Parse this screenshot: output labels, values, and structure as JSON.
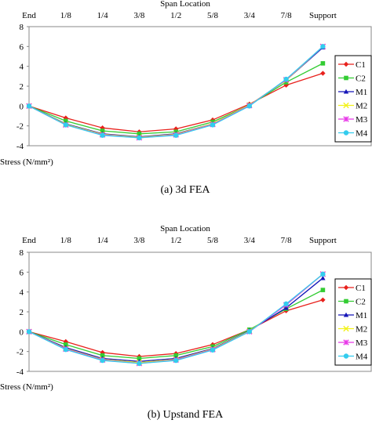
{
  "chart_data": [
    {
      "type": "line",
      "caption": "(a) 3d FEA",
      "xlabel": "Span Location",
      "ylabel": "Stress (N/mm²)",
      "categories": [
        "End",
        "1/8",
        "1/4",
        "3/8",
        "1/2",
        "5/8",
        "3/4",
        "7/8",
        "Support"
      ],
      "ylim": [
        -4,
        8
      ],
      "yticks": [
        -4,
        -2,
        0,
        2,
        4,
        6,
        8
      ],
      "grid": false,
      "legend_position": "right",
      "series": [
        {
          "name": "C1",
          "color": "#e8211c",
          "marker": "diamond",
          "values": [
            0,
            -1.2,
            -2.2,
            -2.6,
            -2.3,
            -1.4,
            0.2,
            2.1,
            3.3
          ]
        },
        {
          "name": "C2",
          "color": "#33cc33",
          "marker": "square",
          "values": [
            0,
            -1.5,
            -2.5,
            -2.8,
            -2.6,
            -1.6,
            0.1,
            2.4,
            4.3
          ]
        },
        {
          "name": "M1",
          "color": "#1515b8",
          "marker": "triangle",
          "values": [
            0,
            -1.8,
            -2.8,
            -3.1,
            -2.8,
            -1.8,
            0.1,
            2.6,
            5.9
          ]
        },
        {
          "name": "M2",
          "color": "#f2f21a",
          "marker": "x",
          "values": [
            0,
            -1.85,
            -2.85,
            -3.15,
            -2.85,
            -1.8,
            0.1,
            2.6,
            6.0
          ]
        },
        {
          "name": "M3",
          "color": "#e838e8",
          "marker": "star",
          "values": [
            0,
            -1.9,
            -2.9,
            -3.2,
            -2.9,
            -1.85,
            0.05,
            2.65,
            6.0
          ]
        },
        {
          "name": "M4",
          "color": "#33ccee",
          "marker": "circle",
          "values": [
            0,
            -1.9,
            -2.95,
            -3.2,
            -2.95,
            -1.9,
            0.0,
            2.7,
            6.0
          ]
        }
      ]
    },
    {
      "type": "line",
      "caption": "(b) Upstand FEA",
      "xlabel": "Span Location",
      "ylabel": "Stress (N/mm²)",
      "categories": [
        "End",
        "1/8",
        "1/4",
        "3/8",
        "1/2",
        "5/8",
        "3/4",
        "7/8",
        "Support"
      ],
      "ylim": [
        -4,
        8
      ],
      "yticks": [
        -4,
        -2,
        0,
        2,
        4,
        6,
        8
      ],
      "grid": false,
      "legend_position": "right",
      "series": [
        {
          "name": "C1",
          "color": "#e8211c",
          "marker": "diamond",
          "values": [
            0,
            -1.0,
            -2.1,
            -2.5,
            -2.2,
            -1.3,
            0.2,
            2.1,
            3.2
          ]
        },
        {
          "name": "C2",
          "color": "#33cc33",
          "marker": "square",
          "values": [
            0,
            -1.3,
            -2.4,
            -2.7,
            -2.4,
            -1.5,
            0.2,
            2.3,
            4.2
          ]
        },
        {
          "name": "M1",
          "color": "#1515b8",
          "marker": "triangle",
          "values": [
            0,
            -1.6,
            -2.7,
            -3.0,
            -2.7,
            -1.7,
            0.1,
            2.4,
            5.4
          ]
        },
        {
          "name": "M2",
          "color": "#f2f21a",
          "marker": "x",
          "values": [
            0,
            -1.7,
            -2.8,
            -3.1,
            -2.8,
            -1.75,
            0.05,
            2.7,
            5.8
          ]
        },
        {
          "name": "M3",
          "color": "#e838e8",
          "marker": "star",
          "values": [
            0,
            -1.75,
            -2.85,
            -3.2,
            -2.85,
            -1.8,
            0.0,
            2.7,
            5.8
          ]
        },
        {
          "name": "M4",
          "color": "#33ccee",
          "marker": "circle",
          "values": [
            0,
            -1.8,
            -2.9,
            -3.2,
            -2.9,
            -1.85,
            0.0,
            2.8,
            5.8
          ]
        }
      ]
    }
  ]
}
